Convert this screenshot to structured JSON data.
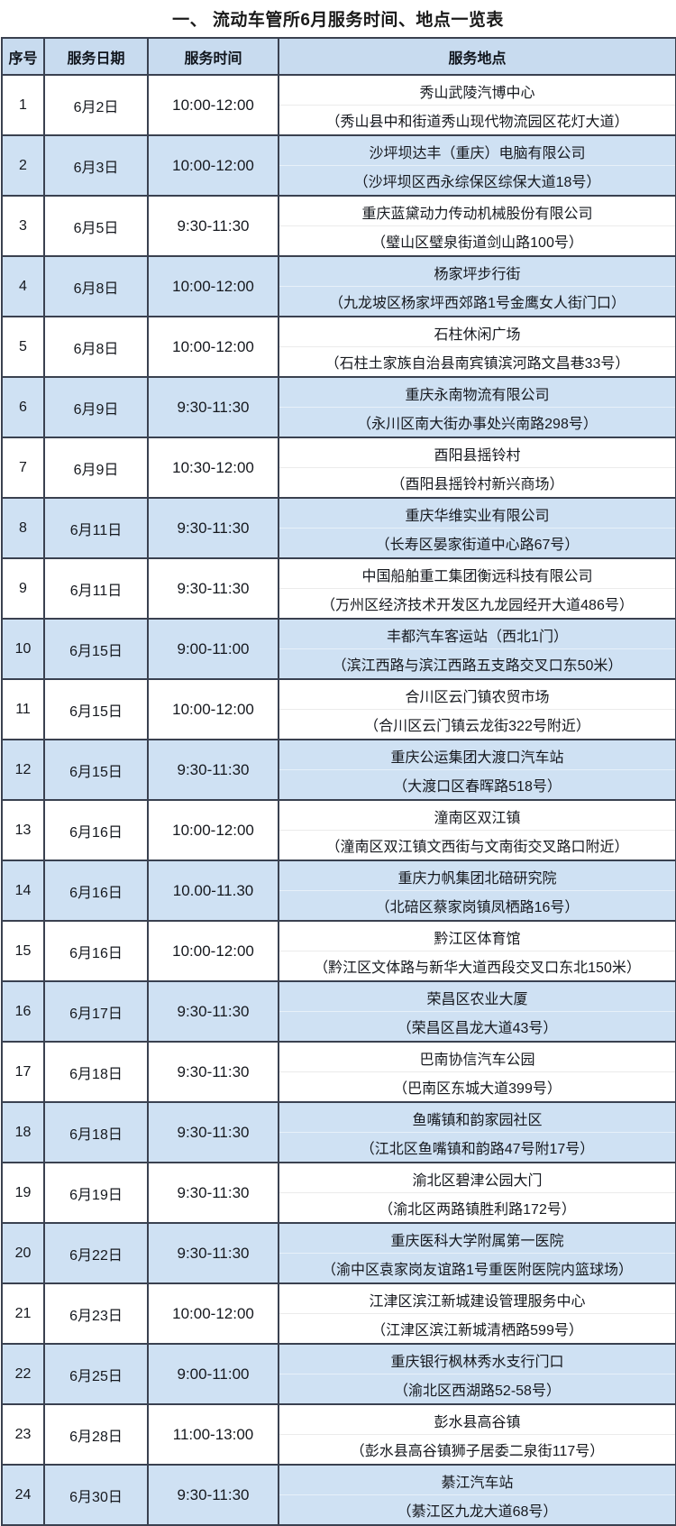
{
  "page": {
    "title": "一、 流动车管所6月服务时间、地点一览表"
  },
  "colors": {
    "border": "#3a4150",
    "header_bg": "#c8dbef",
    "alt_row_bg": "#cfe1f3",
    "text": "#15181e"
  },
  "table": {
    "headers": [
      "序号",
      "服务日期",
      "服务时间",
      "服务地点"
    ],
    "rows": [
      {
        "no": "1",
        "date": "6月2日",
        "time": "10:00-12:00",
        "venue": "秀山武陵汽博中心",
        "address": "（秀山县中和街道秀山现代物流园区花灯大道）"
      },
      {
        "no": "2",
        "date": "6月3日",
        "time": "10:00-12:00",
        "venue": "沙坪坝达丰（重庆）电脑有限公司",
        "address": "（沙坪坝区西永综保区综保大道18号）"
      },
      {
        "no": "3",
        "date": "6月5日",
        "time": "9:30-11:30",
        "venue": "重庆蓝黛动力传动机械股份有限公司",
        "address": "（璧山区璧泉街道剑山路100号）"
      },
      {
        "no": "4",
        "date": "6月8日",
        "time": "10:00-12:00",
        "venue": "杨家坪步行街",
        "address": "（九龙坡区杨家坪西郊路1号金鹰女人街门口）"
      },
      {
        "no": "5",
        "date": "6月8日",
        "time": "10:00-12:00",
        "venue": "石柱休闲广场",
        "address": "（石柱土家族自治县南宾镇滨河路文昌巷33号）"
      },
      {
        "no": "6",
        "date": "6月9日",
        "time": "9:30-11:30",
        "venue": "重庆永南物流有限公司",
        "address": "（永川区南大街办事处兴南路298号）"
      },
      {
        "no": "7",
        "date": "6月9日",
        "time": "10:30-12:00",
        "venue": "酉阳县摇铃村",
        "address": "（酉阳县摇铃村新兴商场）"
      },
      {
        "no": "8",
        "date": "6月11日",
        "time": "9:30-11:30",
        "venue": "重庆华维实业有限公司",
        "address": "（长寿区晏家街道中心路67号）"
      },
      {
        "no": "9",
        "date": "6月11日",
        "time": "9:30-11:30",
        "venue": "中国船舶重工集团衡远科技有限公司",
        "address": "（万州区经济技术开发区九龙园经开大道486号）"
      },
      {
        "no": "10",
        "date": "6月15日",
        "time": "9:00-11:00",
        "venue": "丰都汽车客运站（西北1门）",
        "address": "（滨江西路与滨江西路五支路交叉口东50米）"
      },
      {
        "no": "11",
        "date": "6月15日",
        "time": "10:00-12:00",
        "venue": "合川区云门镇农贸市场",
        "address": "（合川区云门镇云龙街322号附近）"
      },
      {
        "no": "12",
        "date": "6月15日",
        "time": "9:30-11:30",
        "venue": "重庆公运集团大渡口汽车站",
        "address": "（大渡口区春晖路518号）"
      },
      {
        "no": "13",
        "date": "6月16日",
        "time": "10:00-12:00",
        "venue": "潼南区双江镇",
        "address": "（潼南区双江镇文西街与文南街交叉路口附近）"
      },
      {
        "no": "14",
        "date": "6月16日",
        "time": "10.00-11.30",
        "venue": "重庆力帆集团北碚研究院",
        "address": "（北碚区蔡家岗镇凤栖路16号）"
      },
      {
        "no": "15",
        "date": "6月16日",
        "time": "10:00-12:00",
        "venue": "黔江区体育馆",
        "address": "（黔江区文体路与新华大道西段交叉口东北150米）"
      },
      {
        "no": "16",
        "date": "6月17日",
        "time": "9:30-11:30",
        "venue": "荣昌区农业大厦",
        "address": "（荣昌区昌龙大道43号）"
      },
      {
        "no": "17",
        "date": "6月18日",
        "time": "9:30-11:30",
        "venue": "巴南协信汽车公园",
        "address": "（巴南区东城大道399号）"
      },
      {
        "no": "18",
        "date": "6月18日",
        "time": "9:30-11:30",
        "venue": "鱼嘴镇和韵家园社区",
        "address": "（江北区鱼嘴镇和韵路47号附17号）"
      },
      {
        "no": "19",
        "date": "6月19日",
        "time": "9:30-11:30",
        "venue": "渝北区碧津公园大门",
        "address": "（渝北区两路镇胜利路172号）"
      },
      {
        "no": "20",
        "date": "6月22日",
        "time": "9:30-11:30",
        "venue": "重庆医科大学附属第一医院",
        "address": "（渝中区袁家岗友谊路1号重医附医院内篮球场）"
      },
      {
        "no": "21",
        "date": "6月23日",
        "time": "10:00-12:00",
        "venue": "江津区滨江新城建设管理服务中心",
        "address": "（江津区滨江新城清栖路599号）"
      },
      {
        "no": "22",
        "date": "6月25日",
        "time": "9:00-11:00",
        "venue": "重庆银行枫林秀水支行门口",
        "address": "（渝北区西湖路52-58号）"
      },
      {
        "no": "23",
        "date": "6月28日",
        "time": "11:00-13:00",
        "venue": "彭水县高谷镇",
        "address": "（彭水县高谷镇狮子居委二泉街117号）"
      },
      {
        "no": "24",
        "date": "6月30日",
        "time": "9:30-11:30",
        "venue": "綦江汽车站",
        "address": "（綦江区九龙大道68号）"
      }
    ]
  }
}
